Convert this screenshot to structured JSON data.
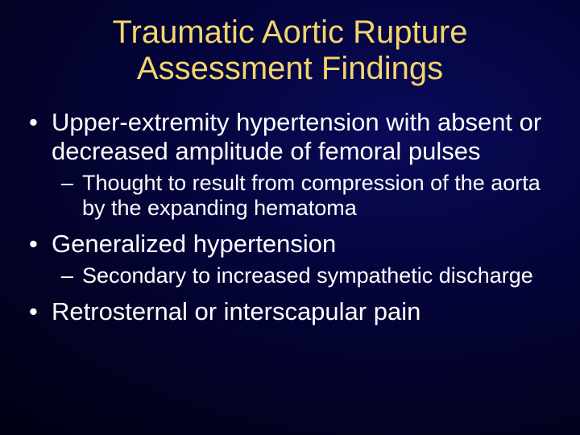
{
  "type": "slide",
  "background": {
    "gradient_center_color": "#0a0a5a",
    "gradient_mid_color": "#020228",
    "gradient_edge_color": "#000000"
  },
  "title": {
    "lines": [
      "Traumatic Aortic Rupture",
      "Assessment Findings"
    ],
    "color": "#f2d66b",
    "fontsize": 40,
    "weight": 400,
    "align": "center"
  },
  "body": {
    "text_color": "#ffffff",
    "level1_fontsize": 31,
    "level2_fontsize": 27,
    "bullets": [
      {
        "text": "Upper-extremity hypertension with absent or decreased amplitude of femoral pulses",
        "sub": [
          {
            "text": "Thought to result from compression of the aorta by the expanding hematoma"
          }
        ]
      },
      {
        "text": "Generalized hypertension",
        "sub": [
          {
            "text": "Secondary to increased sympathetic discharge"
          }
        ]
      },
      {
        "text": "Retrosternal or interscapular pain",
        "sub": []
      }
    ]
  }
}
